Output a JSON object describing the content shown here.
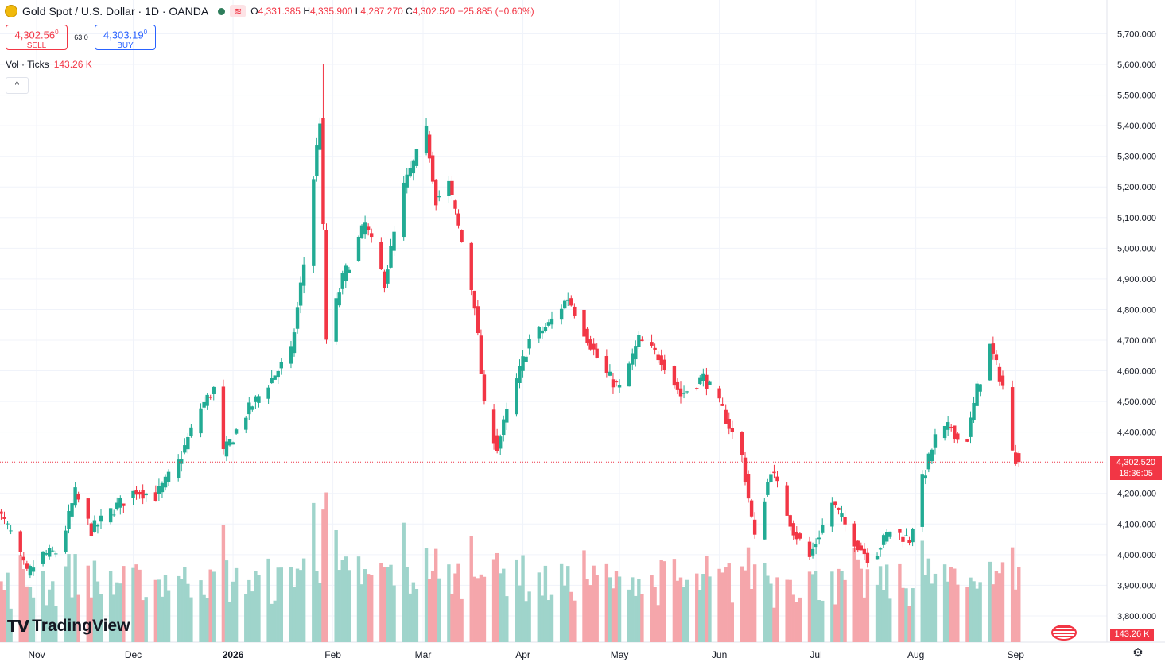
{
  "legend": {
    "title": "Gold Spot / U.S. Dollar · 1D · OANDA",
    "wave": "≋",
    "o_key": "O",
    "o_val": "4,331.385",
    "h_key": "H",
    "h_val": "4,335.900",
    "l_key": "L",
    "l_val": "4,287.270",
    "c_key": "C",
    "c_val": "4,302.520",
    "change": "−25.885 (−0.60%)"
  },
  "trade": {
    "sell_price": "4,302.56",
    "sell_sup": "0",
    "sell_label": "SELL",
    "spread": "63.0",
    "buy_price": "4,303.19",
    "buy_sup": "0",
    "buy_label": "BUY"
  },
  "volume_legend": {
    "label": "Vol · Ticks",
    "value": "143.26 K"
  },
  "collapse_label": "^",
  "last_price_tag": {
    "price": "4,302.520",
    "countdown": "18:36:05"
  },
  "volume_tag": "143.26 K",
  "logo": {
    "mark": "TV",
    "text": "TradingView"
  },
  "colors": {
    "up": "#22ab94",
    "down": "#f23645",
    "vol_up": "#9fd4cb",
    "vol_down": "#f5a6ab",
    "grid": "#f0f3fa"
  },
  "icons": [
    "gold-coin-icon",
    "wave-icon",
    "chevron-up-icon",
    "us-flag-icon",
    "gear-icon"
  ],
  "chart_data": {
    "type": "candlestick",
    "title": "Gold Spot / U.S. Dollar · 1D · OANDA",
    "y_ticks": [
      3800,
      3900,
      4000,
      4100,
      4200,
      4300,
      4400,
      4500,
      4600,
      4700,
      4800,
      4900,
      5000,
      5100,
      5200,
      5300,
      5400,
      5500,
      5600,
      5700
    ],
    "y_tick_labels": [
      "3,800.000",
      "3,900.000",
      "4,000.000",
      "4,100.000",
      "4,200.000",
      "4,300.000",
      "4,400.000",
      "4,500.000",
      "4,600.000",
      "4,700.000",
      "4,800.000",
      "4,900.000",
      "5,000.000",
      "5,100.000",
      "5,200.000",
      "5,300.000",
      "5,400.000",
      "5,500.000",
      "5,600.000",
      "5,700.000"
    ],
    "x_labels": [
      "Nov",
      "Dec",
      "2026",
      "Feb",
      "Mar",
      "Apr",
      "May",
      "Jun",
      "Jul",
      "Aug",
      "Sep"
    ],
    "x_label_dates": [
      "2025-11-01",
      "2025-12-01",
      "2026-01-01",
      "2026-02-01",
      "2026-03-01",
      "2026-04-01",
      "2026-05-01",
      "2026-06-01",
      "2026-07-01",
      "2026-08-01",
      "2026-09-01"
    ],
    "grid": true,
    "close_anchors": [
      [
        "2025-10-20",
        4140
      ],
      [
        "2025-10-24",
        4070
      ],
      [
        "2025-10-29",
        3935
      ],
      [
        "2025-11-03",
        4000
      ],
      [
        "2025-11-08",
        4010
      ],
      [
        "2025-11-13",
        4200
      ],
      [
        "2025-11-18",
        4080
      ],
      [
        "2025-11-25",
        4150
      ],
      [
        "2025-12-02",
        4210
      ],
      [
        "2025-12-08",
        4190
      ],
      [
        "2025-12-15",
        4300
      ],
      [
        "2025-12-22",
        4480
      ],
      [
        "2025-12-26",
        4540
      ],
      [
        "2025-12-29",
        4330
      ],
      [
        "2026-01-05",
        4460
      ],
      [
        "2026-01-12",
        4560
      ],
      [
        "2026-01-19",
        4660
      ],
      [
        "2026-01-23",
        4950
      ],
      [
        "2026-01-28",
        5420
      ],
      [
        "2026-01-30",
        4700
      ],
      [
        "2026-02-04",
        4900
      ],
      [
        "2026-02-11",
        5080
      ],
      [
        "2026-02-17",
        4890
      ],
      [
        "2026-02-23",
        5200
      ],
      [
        "2026-03-02",
        5380
      ],
      [
        "2026-03-05",
        5160
      ],
      [
        "2026-03-09",
        5210
      ],
      [
        "2026-03-13",
        5020
      ],
      [
        "2026-03-17",
        4820
      ],
      [
        "2026-03-20",
        4480
      ],
      [
        "2026-03-24",
        4350
      ],
      [
        "2026-03-28",
        4500
      ],
      [
        "2026-04-03",
        4700
      ],
      [
        "2026-04-09",
        4750
      ],
      [
        "2026-04-15",
        4840
      ],
      [
        "2026-04-20",
        4730
      ],
      [
        "2026-04-26",
        4600
      ],
      [
        "2026-05-01",
        4540
      ],
      [
        "2026-05-07",
        4700
      ],
      [
        "2026-05-14",
        4640
      ],
      [
        "2026-05-20",
        4520
      ],
      [
        "2026-05-27",
        4580
      ],
      [
        "2026-06-02",
        4470
      ],
      [
        "2026-06-08",
        4320
      ],
      [
        "2026-06-12",
        4050
      ],
      [
        "2026-06-17",
        4280
      ],
      [
        "2026-06-24",
        4080
      ],
      [
        "2026-06-29",
        3990
      ],
      [
        "2026-07-06",
        4170
      ],
      [
        "2026-07-12",
        4060
      ],
      [
        "2026-07-18",
        3980
      ],
      [
        "2026-07-24",
        4080
      ],
      [
        "2026-07-30",
        4050
      ],
      [
        "2026-08-03",
        4240
      ],
      [
        "2026-08-07",
        4380
      ],
      [
        "2026-08-12",
        4420
      ],
      [
        "2026-08-16",
        4330
      ],
      [
        "2026-08-20",
        4540
      ],
      [
        "2026-08-24",
        4680
      ],
      [
        "2026-08-28",
        4550
      ],
      [
        "2026-08-31",
        4330
      ],
      [
        "2026-09-02",
        4302.52
      ]
    ],
    "last_candle": {
      "o": 4331.385,
      "h": 4335.9,
      "l": 4287.27,
      "c": 4302.52
    },
    "peak_high": 5600,
    "volume_ylim": [
      0,
      1
    ]
  }
}
